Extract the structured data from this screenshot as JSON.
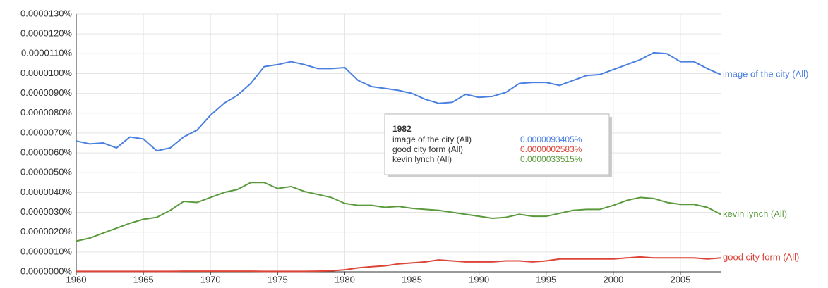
{
  "chart_data": {
    "type": "line",
    "x": [
      1960,
      1961,
      1962,
      1963,
      1964,
      1965,
      1966,
      1967,
      1968,
      1969,
      1970,
      1971,
      1972,
      1973,
      1974,
      1975,
      1976,
      1977,
      1978,
      1979,
      1980,
      1981,
      1982,
      1983,
      1984,
      1985,
      1986,
      1987,
      1988,
      1989,
      1990,
      1991,
      1992,
      1993,
      1994,
      1995,
      1996,
      1997,
      1998,
      1999,
      2000,
      2001,
      2002,
      2003,
      2004,
      2005,
      2006,
      2007,
      2008
    ],
    "series": [
      {
        "name": "image of the city (All)",
        "color": "#4a80e0",
        "values": [
          6.6e-06,
          6.45e-06,
          6.5e-06,
          6.25e-06,
          6.8e-06,
          6.7e-06,
          6.1e-06,
          6.25e-06,
          6.8e-06,
          7.15e-06,
          7.9e-06,
          8.5e-06,
          8.9e-06,
          9.5e-06,
          1.035e-05,
          1.045e-05,
          1.06e-05,
          1.045e-05,
          1.025e-05,
          1.025e-05,
          1.03e-05,
          9.65e-06,
          9.3405e-06,
          9.25e-06,
          9.15e-06,
          9e-06,
          8.7e-06,
          8.5e-06,
          8.55e-06,
          8.95e-06,
          8.8e-06,
          8.85e-06,
          9.05e-06,
          9.5e-06,
          9.55e-06,
          9.55e-06,
          9.4e-06,
          9.65e-06,
          9.9e-06,
          9.95e-06,
          1.02e-05,
          1.045e-05,
          1.07e-05,
          1.105e-05,
          1.1e-05,
          1.06e-05,
          1.06e-05,
          1.025e-05,
          9.95e-06
        ]
      },
      {
        "name": "good city form (All)",
        "color": "#db4437",
        "values": [
          2e-08,
          2e-08,
          2e-08,
          2e-08,
          2e-08,
          2e-08,
          2e-08,
          2e-08,
          3e-08,
          3e-08,
          3e-08,
          3e-08,
          3e-08,
          3e-08,
          2e-08,
          2e-08,
          2e-08,
          2e-08,
          3e-08,
          5e-08,
          1e-07,
          2e-07,
          2.583e-07,
          3e-07,
          4e-07,
          4.5e-07,
          5e-07,
          6e-07,
          5.5e-07,
          5e-07,
          5e-07,
          5e-07,
          5.5e-07,
          5.5e-07,
          5e-07,
          5.5e-07,
          6.5e-07,
          6.5e-07,
          6.5e-07,
          6.5e-07,
          6.5e-07,
          7e-07,
          7.5e-07,
          7e-07,
          7e-07,
          7e-07,
          7e-07,
          6.5e-07,
          7e-07
        ]
      },
      {
        "name": "kevin lynch (All)",
        "color": "#5b9a3c",
        "values": [
          1.55e-06,
          1.7e-06,
          1.95e-06,
          2.2e-06,
          2.45e-06,
          2.65e-06,
          2.75e-06,
          3.1e-06,
          3.55e-06,
          3.5e-06,
          3.75e-06,
          4e-06,
          4.15e-06,
          4.5e-06,
          4.5e-06,
          4.2e-06,
          4.3e-06,
          4.05e-06,
          3.9e-06,
          3.75e-06,
          3.45e-06,
          3.35e-06,
          3.3515e-06,
          3.25e-06,
          3.3e-06,
          3.2e-06,
          3.15e-06,
          3.1e-06,
          3e-06,
          2.9e-06,
          2.8e-06,
          2.7e-06,
          2.75e-06,
          2.9e-06,
          2.8e-06,
          2.8e-06,
          2.95e-06,
          3.1e-06,
          3.15e-06,
          3.15e-06,
          3.35e-06,
          3.6e-06,
          3.75e-06,
          3.7e-06,
          3.5e-06,
          3.4e-06,
          3.4e-06,
          3.25e-06,
          2.9e-06
        ]
      }
    ],
    "xlim": [
      1960,
      2008
    ],
    "xticks": [
      1960,
      1965,
      1970,
      1975,
      1980,
      1985,
      1990,
      1995,
      2000,
      2005
    ],
    "ylim": [
      0,
      1.3e-05
    ],
    "yticks": [
      {
        "value": 0,
        "label": "0.0000000%"
      },
      {
        "value": 1e-06,
        "label": "0.0000010%"
      },
      {
        "value": 2e-06,
        "label": "0.0000020%"
      },
      {
        "value": 3e-06,
        "label": "0.0000030%"
      },
      {
        "value": 4e-06,
        "label": "0.0000040%"
      },
      {
        "value": 5e-06,
        "label": "0.0000050%"
      },
      {
        "value": 6e-06,
        "label": "0.0000060%"
      },
      {
        "value": 7e-06,
        "label": "0.0000070%"
      },
      {
        "value": 8e-06,
        "label": "0.0000080%"
      },
      {
        "value": 9e-06,
        "label": "0.0000090%"
      },
      {
        "value": 1e-05,
        "label": "0.0000100%"
      },
      {
        "value": 1.1e-05,
        "label": "0.0000110%"
      },
      {
        "value": 1.2e-05,
        "label": "0.0000120%"
      },
      {
        "value": 1.3e-05,
        "label": "0.0000130%"
      }
    ],
    "grid": true,
    "tooltip": {
      "x": 1982,
      "labels": [
        "0.0000093405%",
        "0.0000002583%",
        "0.0000033515%"
      ]
    }
  }
}
